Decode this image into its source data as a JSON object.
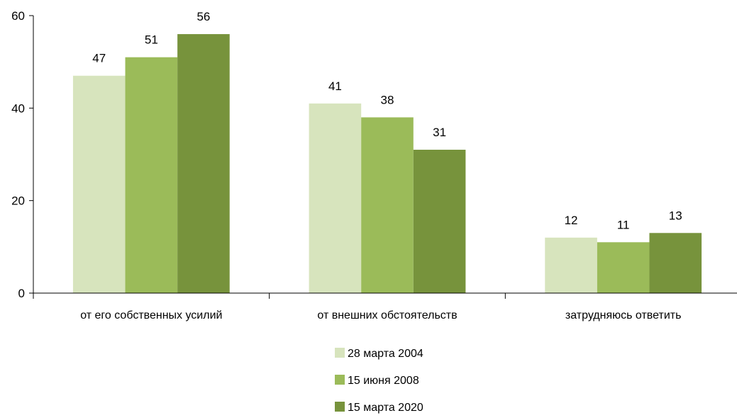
{
  "chart_data": {
    "type": "bar",
    "categories": [
      "от его собственных усилий",
      "от внешних обстоятельств",
      "затрудняюсь ответить"
    ],
    "series": [
      {
        "name": "28 марта 2004",
        "values": [
          47,
          41,
          12
        ],
        "color": "#d7e4bd"
      },
      {
        "name": "15 июня 2008",
        "values": [
          51,
          38,
          11
        ],
        "color": "#9bbb59"
      },
      {
        "name": "15 марта 2020",
        "values": [
          56,
          31,
          13
        ],
        "color": "#77933c"
      }
    ],
    "yticks": [
      0,
      20,
      40,
      60
    ],
    "ylim": [
      0,
      60
    ],
    "grid": false,
    "legend_position": "bottom-center",
    "title": "",
    "xlabel": "",
    "ylabel": ""
  }
}
